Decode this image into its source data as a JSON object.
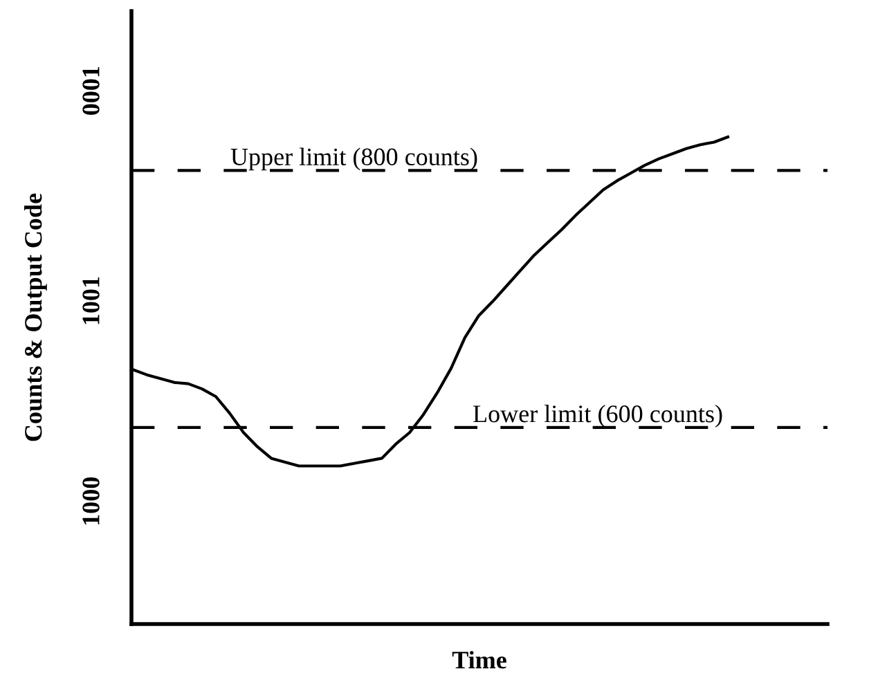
{
  "chart_data": {
    "type": "line",
    "xlabel": "Time",
    "ylabel": "Counts & Output Code",
    "categories": [
      null,
      null,
      null,
      null,
      null,
      null,
      null,
      null,
      null,
      null,
      null,
      null,
      null,
      null,
      null,
      null,
      null,
      null,
      null,
      null,
      null,
      null,
      null,
      null,
      null,
      null,
      null,
      null,
      null,
      null,
      null,
      null,
      null,
      null,
      null,
      null,
      null,
      null,
      null,
      null,
      null,
      null,
      null,
      null,
      null,
      null,
      null,
      null,
      null,
      null,
      null
    ],
    "series": [
      {
        "color": "#000000",
        "values": [
          645,
          641,
          638,
          635,
          634,
          630,
          624,
          611,
          596,
          585,
          576,
          573,
          570,
          570,
          570,
          570,
          572,
          574,
          576,
          587,
          596,
          610,
          627,
          646,
          670,
          687,
          698,
          710,
          722,
          734,
          744,
          754,
          765,
          775,
          785,
          792,
          798,
          804,
          809,
          813,
          817,
          820,
          822,
          826,
          null,
          null,
          null,
          null,
          null,
          null,
          null
        ]
      }
    ],
    "ylim": [
      447,
      924
    ],
    "annotations": [
      "1000",
      "1001",
      "0001"
    ],
    "ref_lines": [
      {
        "axis": "y",
        "value": 800,
        "label": "Upper limit (800 counts)",
        "color": "#000000",
        "line_style": "dashed"
      },
      {
        "axis": "y",
        "value": 600,
        "label": "Lower limit (600 counts)",
        "color": "#000000",
        "line_style": "dashed"
      }
    ],
    "tick_labels": "y",
    "legend": false,
    "marker": "none",
    "line_style": "solid"
  }
}
